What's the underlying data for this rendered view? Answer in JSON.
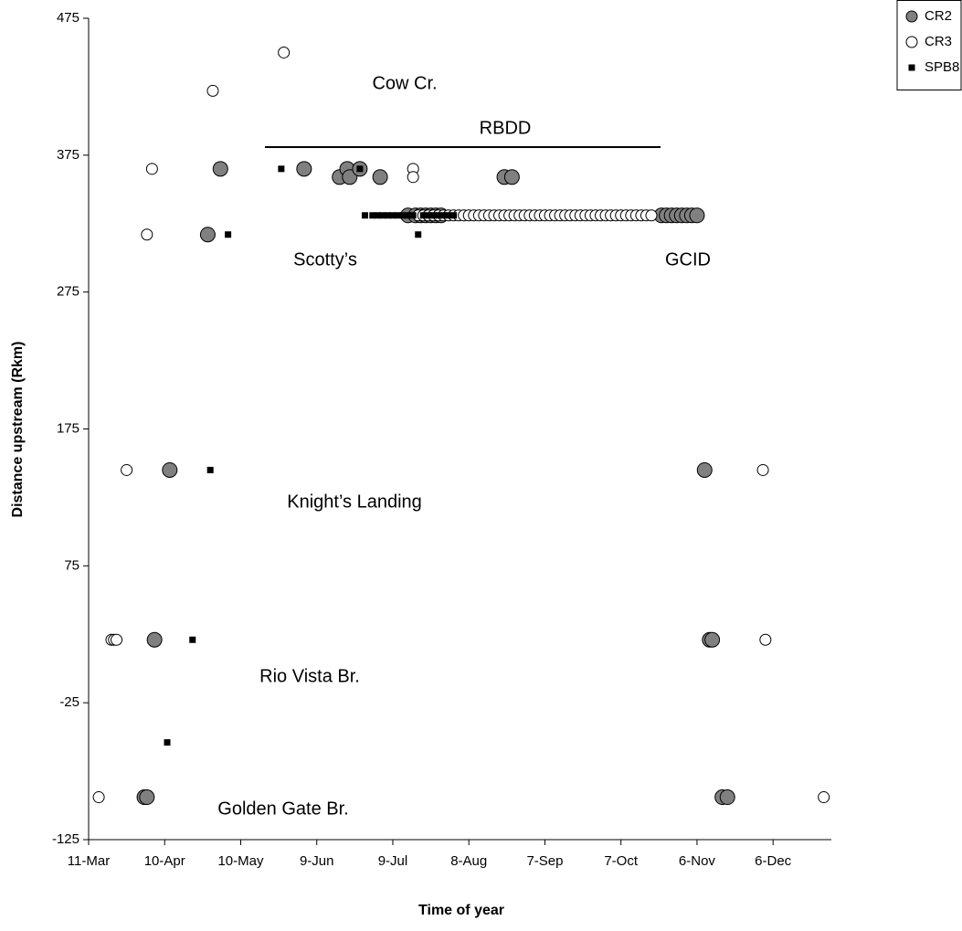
{
  "chart_data": {
    "type": "scatter",
    "x_label": "Time of year",
    "y_label": "Distance upstream (Rkm)",
    "xlim": [
      70,
      363
    ],
    "ylim": [
      -125,
      475
    ],
    "xticks": [
      {
        "value": 70,
        "label": "11-Mar"
      },
      {
        "value": 100,
        "label": "10-Apr"
      },
      {
        "value": 130,
        "label": "10-May"
      },
      {
        "value": 160,
        "label": "9-Jun"
      },
      {
        "value": 190,
        "label": "9-Jul"
      },
      {
        "value": 220,
        "label": "8-Aug"
      },
      {
        "value": 250,
        "label": "7-Sep"
      },
      {
        "value": 280,
        "label": "7-Oct"
      },
      {
        "value": 310,
        "label": "6-Nov"
      },
      {
        "value": 340,
        "label": "6-Dec"
      }
    ],
    "yticks": [
      475,
      375,
      275,
      175,
      75,
      -25,
      -125
    ],
    "grid": false,
    "legend": "top-right",
    "annotations": [
      "Cow Cr.",
      "RBDD",
      "Scotty’s",
      "GCID",
      "Knight’s Landing",
      "Rio Vista Br.",
      "Golden Gate Br."
    ],
    "series": [
      {
        "name": "CR2",
        "color": "#808080",
        "marker": "circle",
        "x": [
          92,
          93,
          96,
          102,
          117,
          122,
          155,
          169,
          172,
          173,
          177,
          185,
          196,
          199,
          201,
          203,
          205,
          207,
          209,
          234,
          237,
          296,
          298,
          300,
          302,
          304,
          306,
          308,
          310,
          313,
          315,
          316,
          320,
          322
        ],
        "values": [
          -94,
          -94,
          21,
          145,
          317,
          365,
          365,
          359,
          365,
          359,
          365,
          359,
          331,
          331,
          331,
          331,
          331,
          331,
          331,
          359,
          359,
          331,
          331,
          331,
          331,
          331,
          331,
          331,
          331,
          145,
          21,
          21,
          -94,
          -94
        ]
      },
      {
        "name": "CR3",
        "color": "#ffffff",
        "marker": "circle",
        "x": [
          74,
          79,
          80,
          81,
          85,
          93,
          95,
          119,
          147,
          198,
          198,
          200,
          202,
          204,
          206,
          208,
          210,
          212,
          214,
          216,
          218,
          220,
          222,
          224,
          226,
          228,
          230,
          232,
          234,
          236,
          238,
          240,
          242,
          244,
          246,
          248,
          250,
          252,
          254,
          256,
          258,
          260,
          262,
          264,
          266,
          268,
          270,
          272,
          274,
          276,
          278,
          280,
          282,
          284,
          286,
          288,
          290,
          292,
          336,
          337,
          360
        ],
        "values": [
          -94,
          21,
          21,
          21,
          145,
          317,
          365,
          422,
          450,
          365,
          359,
          331,
          331,
          331,
          331,
          331,
          331,
          331,
          331,
          331,
          331,
          331,
          331,
          331,
          331,
          331,
          331,
          331,
          331,
          331,
          331,
          331,
          331,
          331,
          331,
          331,
          331,
          331,
          331,
          331,
          331,
          331,
          331,
          331,
          331,
          331,
          331,
          331,
          331,
          331,
          331,
          331,
          331,
          331,
          331,
          331,
          331,
          331,
          145,
          21,
          -94
        ]
      },
      {
        "name": "SPB8",
        "color": "#000000",
        "marker": "square",
        "x": [
          101,
          111,
          118,
          125,
          146,
          177,
          179,
          200,
          182,
          184,
          186,
          188,
          190,
          192,
          194,
          196,
          198,
          202,
          204,
          206,
          208,
          210,
          212,
          214
        ],
        "values": [
          -54,
          21,
          145,
          317,
          365,
          365,
          331,
          317,
          331,
          331,
          331,
          331,
          331,
          331,
          331,
          331,
          331,
          331,
          331,
          331,
          331,
          331,
          331,
          331
        ]
      }
    ]
  }
}
